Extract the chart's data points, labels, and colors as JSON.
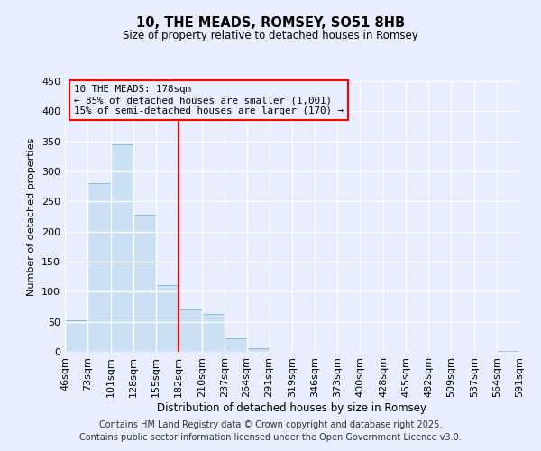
{
  "title": "10, THE MEADS, ROMSEY, SO51 8HB",
  "subtitle": "Size of property relative to detached houses in Romsey",
  "xlabel": "Distribution of detached houses by size in Romsey",
  "ylabel": "Number of detached properties",
  "bar_color": "#cce0f5",
  "bar_edge_color": "#88bbdd",
  "background_color": "#e8eeff",
  "grid_color": "white",
  "vline_x": 182,
  "vline_color": "red",
  "annotation_lines": [
    "10 THE MEADS: 178sqm",
    "← 85% of detached houses are smaller (1,001)",
    "15% of semi-detached houses are larger (170) →"
  ],
  "annotation_box_color": "red",
  "bins": [
    46,
    73,
    101,
    128,
    155,
    182,
    210,
    237,
    264,
    291,
    319,
    346,
    373,
    400,
    428,
    455,
    482,
    509,
    537,
    564,
    591
  ],
  "bar_values": [
    52,
    280,
    345,
    228,
    111,
    71,
    63,
    22,
    6,
    0,
    0,
    0,
    0,
    0,
    0,
    0,
    0,
    0,
    0,
    1
  ],
  "ylim": [
    0,
    450
  ],
  "yticks": [
    0,
    50,
    100,
    150,
    200,
    250,
    300,
    350,
    400,
    450
  ],
  "footer_lines": [
    "Contains HM Land Registry data © Crown copyright and database right 2025.",
    "Contains public sector information licensed under the Open Government Licence v3.0."
  ],
  "footer_fontsize": 7.0,
  "title_fontsize": 10.5,
  "subtitle_fontsize": 8.5,
  "ylabel_fontsize": 8,
  "xlabel_fontsize": 8.5
}
